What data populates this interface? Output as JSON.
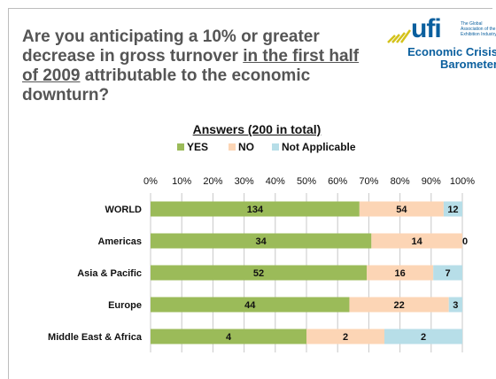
{
  "question": {
    "part1": "Are you anticipating a 10% or greater decrease in gross turnover ",
    "underlined": "in the first half of 2009",
    "part2": " attributable to the economic downturn?"
  },
  "logo": {
    "brand": "ufi",
    "association": "The Global Association of the Exhibition Industry",
    "line1": "Economic Crisis",
    "line2": "Barometer"
  },
  "colors": {
    "yes": "#9bbb59",
    "no": "#fcd5b5",
    "na": "#b7dee8",
    "grid": "#c8c8c8"
  },
  "chart_data": {
    "type": "bar",
    "orientation": "horizontal",
    "stacked": "percent",
    "title": "Answers (200 in total)",
    "categories": [
      "WORLD",
      "Americas",
      "Asia & Pacific",
      "Europe",
      "Middle East & Africa"
    ],
    "series": [
      {
        "name": "YES",
        "values": [
          134,
          34,
          52,
          44,
          4
        ]
      },
      {
        "name": "NO",
        "values": [
          54,
          14,
          16,
          22,
          2
        ]
      },
      {
        "name": "Not Applicable",
        "values": [
          12,
          0,
          7,
          3,
          2
        ]
      }
    ],
    "xticks": [
      "0%",
      "10%",
      "20%",
      "30%",
      "40%",
      "50%",
      "60%",
      "70%",
      "80%",
      "90%",
      "100%"
    ],
    "xlim": [
      0,
      100
    ],
    "grid": true,
    "legend": "top"
  }
}
